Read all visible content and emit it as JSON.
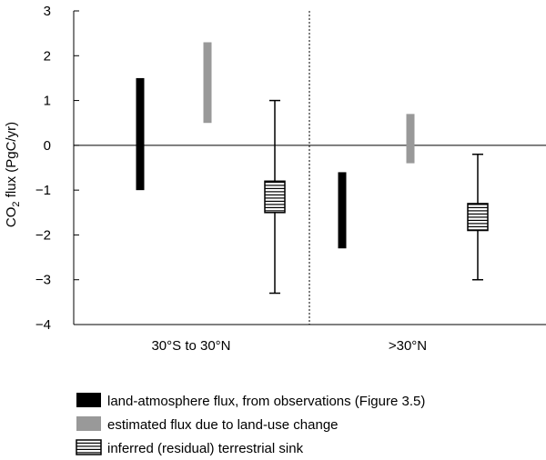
{
  "chart_data": {
    "type": "bar",
    "subtype": "floating-range-bars",
    "ylabel_parts": [
      "CO",
      "2",
      " flux (PgC/yr)"
    ],
    "ylim": [
      -4,
      3
    ],
    "yticks": [
      "3",
      "2",
      "1",
      "0",
      "−1",
      "−2",
      "−3",
      "−4"
    ],
    "ytick_values": [
      3,
      2,
      1,
      0,
      -1,
      -2,
      -3,
      -4
    ],
    "categories": [
      "30°S to 30°N",
      ">30°N"
    ],
    "grid": false,
    "series": [
      {
        "name": "land-atmosphere flux, from observations (Figure 3.5)",
        "style": "solid-black",
        "color": "#000000",
        "ranges": [
          [
            -1.0,
            1.5
          ],
          [
            -2.3,
            -0.6
          ]
        ]
      },
      {
        "name": "estimated flux due to land-use change",
        "style": "solid-gray",
        "color": "#999999",
        "ranges": [
          [
            0.5,
            2.3
          ],
          [
            -0.4,
            0.7
          ]
        ]
      },
      {
        "name": "inferred (residual) terrestrial sink",
        "style": "hatched-box-with-whiskers",
        "color": "#000000",
        "boxes": [
          [
            -1.5,
            -0.8
          ],
          [
            -1.9,
            -1.3
          ]
        ],
        "whiskers": [
          [
            -3.3,
            1.0
          ],
          [
            -3.0,
            -0.2
          ]
        ]
      }
    ],
    "legend_position": "bottom"
  }
}
